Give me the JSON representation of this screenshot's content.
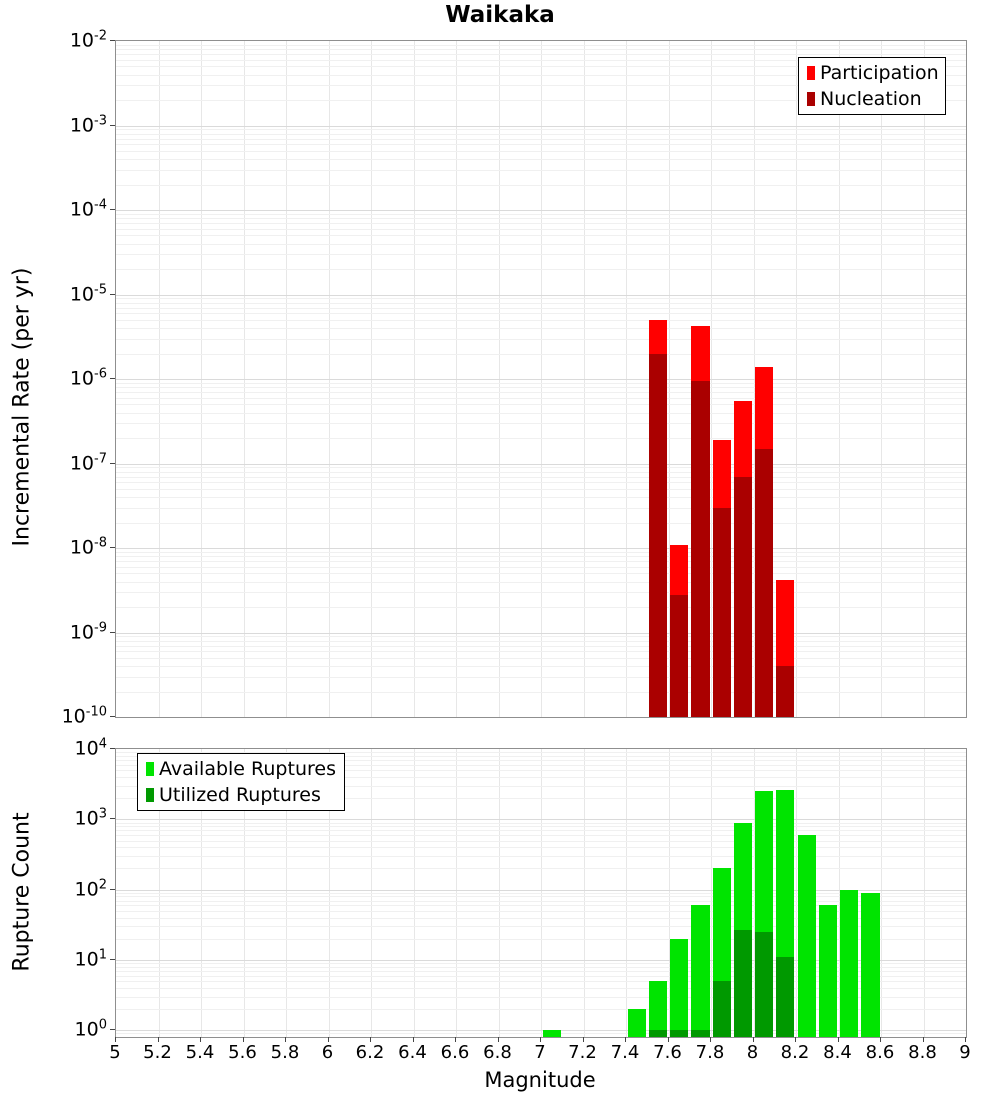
{
  "title": "Waikaka",
  "x_axis": {
    "label": "Magnitude",
    "tick_labels": [
      "5",
      "5.2",
      "5.4",
      "5.6",
      "5.8",
      "6",
      "6.2",
      "6.4",
      "6.6",
      "6.8",
      "7",
      "7.2",
      "7.4",
      "7.6",
      "7.8",
      "8",
      "8.2",
      "8.4",
      "8.6",
      "8.8",
      "9"
    ]
  },
  "chart_data": [
    {
      "type": "bar",
      "panel": "incremental-rate",
      "title": "Waikaka",
      "xlabel": "Magnitude",
      "ylabel": "Incremental Rate (per yr)",
      "y_scale": "log",
      "xlim": [
        5,
        9
      ],
      "ylim": [
        1e-10,
        0.01
      ],
      "y_tick_exponents": [
        -2,
        -3,
        -4,
        -5,
        -6,
        -7,
        -8,
        -9,
        -10
      ],
      "grid": true,
      "legend_position": "top-right",
      "bin_width": 0.1,
      "bin_centers": [
        7.55,
        7.65,
        7.75,
        7.85,
        7.95,
        8.05,
        8.15
      ],
      "series": [
        {
          "name": "Participation",
          "color": "#ff0000",
          "values": [
            5e-06,
            1.1e-08,
            4.2e-06,
            1.9e-07,
            5.5e-07,
            1.4e-06,
            4.2e-09
          ]
        },
        {
          "name": "Nucleation",
          "color": "#aa0000",
          "values": [
            2e-06,
            2.8e-09,
            9.5e-07,
            3e-08,
            7e-08,
            1.5e-07,
            4e-10
          ]
        }
      ]
    },
    {
      "type": "bar",
      "panel": "rupture-count",
      "xlabel": "Magnitude",
      "ylabel": "Rupture Count",
      "y_scale": "log",
      "xlim": [
        5,
        9
      ],
      "ylim": [
        0.8,
        10000.0
      ],
      "y_tick_exponents": [
        4,
        3,
        2,
        1,
        0
      ],
      "grid": true,
      "legend_position": "top-left",
      "bin_width": 0.1,
      "bin_centers": [
        7.05,
        7.45,
        7.55,
        7.65,
        7.75,
        7.85,
        7.95,
        8.05,
        8.15,
        8.25,
        8.35,
        8.45,
        8.55
      ],
      "series": [
        {
          "name": "Available Ruptures",
          "color": "#00e400",
          "values": [
            1,
            2,
            5,
            20,
            60,
            200,
            900,
            2500,
            2600,
            600,
            60,
            100,
            90
          ]
        },
        {
          "name": "Utilized Ruptures",
          "color": "#009900",
          "values": [
            0,
            0,
            1,
            1,
            1,
            5,
            27,
            25,
            11,
            0,
            0,
            0,
            0
          ]
        }
      ]
    }
  ]
}
